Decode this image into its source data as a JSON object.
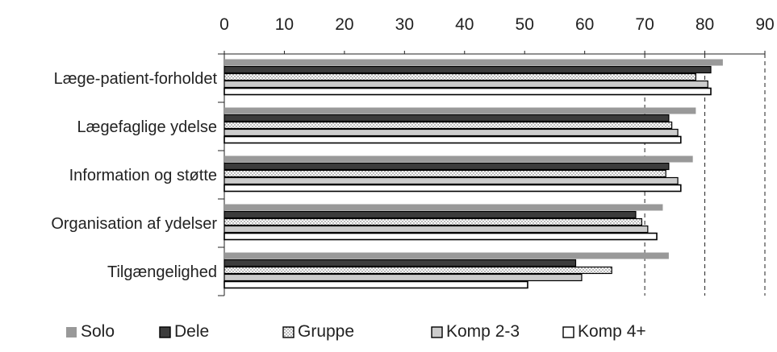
{
  "chart_data": {
    "type": "bar",
    "orientation": "horizontal",
    "categories": [
      "Læge-patient-forholdet",
      "Lægefaglige ydelse",
      "Information og støtte",
      "Organisation af ydelser",
      "Tilgængelighed"
    ],
    "series": [
      {
        "name": "Solo",
        "values": [
          83,
          78.5,
          78,
          73,
          74
        ],
        "color": "#999999",
        "pattern": "solid-light"
      },
      {
        "name": "Dele",
        "values": [
          81,
          74,
          74,
          68.5,
          58.5
        ],
        "color": "#3c3c3c",
        "pattern": "solid-dark"
      },
      {
        "name": "Gruppe",
        "values": [
          78.5,
          74.5,
          73.5,
          69.5,
          64.5
        ],
        "color": "#ffffff",
        "pattern": "dotted"
      },
      {
        "name": "Komp 2-3",
        "values": [
          80.5,
          75.5,
          75.5,
          70.5,
          59.5
        ],
        "color": "#cccccc",
        "pattern": "solid-lighter"
      },
      {
        "name": "Komp 4+",
        "values": [
          81,
          76,
          76,
          72,
          50.5
        ],
        "color": "#ffffff",
        "pattern": "outline"
      }
    ],
    "xlim": [
      0,
      90
    ],
    "xticks": [
      0,
      10,
      20,
      30,
      40,
      50,
      60,
      70,
      80,
      90
    ],
    "gridlines": [
      70,
      80,
      90
    ],
    "legend_position": "bottom"
  }
}
